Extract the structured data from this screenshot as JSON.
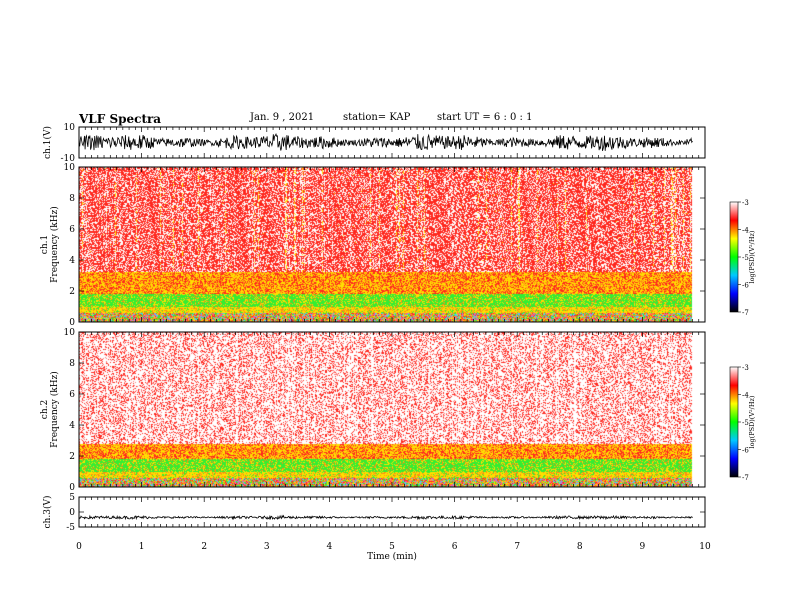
{
  "header": {
    "title": "VLF Spectra",
    "date": "Jan. 9 , 2021",
    "station": "station= KAP",
    "start_ut": "start UT =  6 : 0 : 1"
  },
  "colors": {
    "waveform": "#000000",
    "spectrum_base": "#ff3b2e",
    "spectrum_noise": "#ffffff",
    "band_yellow": "#ffe000",
    "band_green": "#33ee33",
    "colorbar_stops": [
      "#000000",
      "#0000ff",
      "#00c8ff",
      "#00ff00",
      "#ffff00",
      "#ff0000",
      "#ffffff"
    ]
  },
  "chart_data": [
    {
      "type": "line",
      "panel": "ch1-waveform",
      "ylabel": "ch.1(V)",
      "ylim": [
        -10,
        10
      ],
      "yticks": [
        "10",
        "-10"
      ],
      "xlim": [
        0,
        10
      ],
      "description_values": {
        "typical_amplitude_V": 5,
        "noise": "dense random waveform"
      }
    },
    {
      "type": "heatmap",
      "panel": "ch1-spectrogram",
      "ylabel": "ch.1\nFrequency (kHz)",
      "ylim": [
        0,
        10
      ],
      "yticks": [
        "0",
        "2",
        "4",
        "6",
        "8",
        "10"
      ],
      "xlim": [
        0,
        10
      ],
      "data_extent_min": 9.8,
      "bands_kHz": [
        {
          "from": 0.0,
          "to": 0.6,
          "color": "mixed"
        },
        {
          "from": 0.6,
          "to": 1.0,
          "color": "yellow"
        },
        {
          "from": 1.0,
          "to": 1.8,
          "color": "green"
        },
        {
          "from": 1.8,
          "to": 3.2,
          "color": "yellow-red"
        },
        {
          "from": 3.2,
          "to": 10.0,
          "color": "red-white"
        }
      ],
      "colorbar": {
        "label": "log(PSD)(V²/Hz)",
        "range": [
          -7,
          -3
        ],
        "ticks": [
          "-3",
          "-4",
          "-5",
          "-6",
          "-7"
        ]
      }
    },
    {
      "type": "heatmap",
      "panel": "ch2-spectrogram",
      "ylabel": "ch.2\nFrequency (kHz)",
      "ylim": [
        0,
        10
      ],
      "yticks": [
        "0",
        "2",
        "4",
        "6",
        "8",
        "10"
      ],
      "xlim": [
        0,
        10
      ],
      "data_extent_min": 9.8,
      "bands_kHz": [
        {
          "from": 0.0,
          "to": 0.5,
          "color": "mixed"
        },
        {
          "from": 0.5,
          "to": 1.0,
          "color": "yellow"
        },
        {
          "from": 1.0,
          "to": 1.8,
          "color": "green"
        },
        {
          "from": 1.8,
          "to": 2.8,
          "color": "yellow-red"
        },
        {
          "from": 2.8,
          "to": 10.0,
          "color": "white-pink"
        }
      ],
      "colorbar": {
        "label": "log(PSD)(V²/Hz)",
        "range": [
          -7,
          -3
        ],
        "ticks": [
          "-3",
          "-4",
          "-5",
          "-6",
          "-7"
        ]
      }
    },
    {
      "type": "line",
      "panel": "ch3-waveform",
      "ylabel": "ch.3(V)",
      "ylim": [
        -5,
        5
      ],
      "yticks": [
        "5",
        "0",
        "-5"
      ],
      "xlim": [
        0,
        10
      ],
      "description_values": {
        "center_V": -1.8,
        "amplitude_V": 0.5
      }
    },
    {
      "type": "axis",
      "panel": "time-axis",
      "xlabel": "Time (min)",
      "xlim": [
        0,
        10
      ],
      "xticks": [
        "0",
        "1",
        "2",
        "3",
        "4",
        "5",
        "6",
        "7",
        "8",
        "9",
        "10"
      ]
    }
  ]
}
